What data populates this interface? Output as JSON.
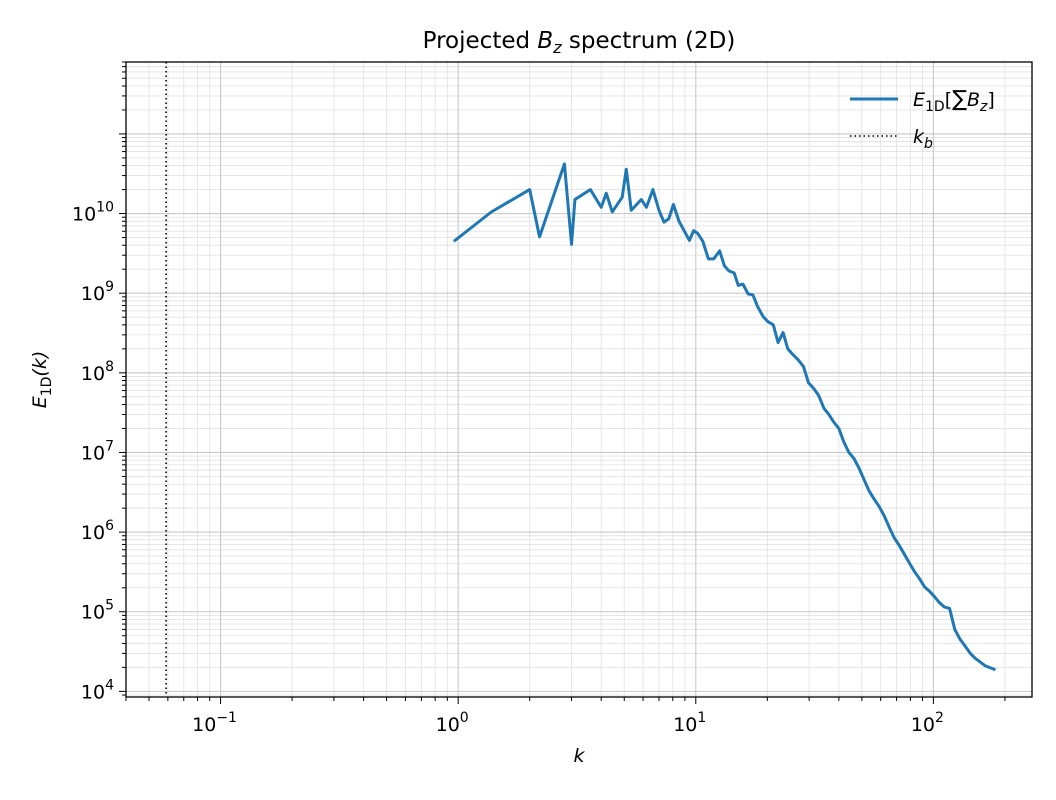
{
  "chart_data": {
    "type": "line",
    "title": "Projected B_z spectrum (2D)",
    "title_parts": {
      "prefix": "Projected ",
      "var": "B",
      "sub": "z",
      "suffix": " spectrum (2D)"
    },
    "xlabel": "k",
    "ylabel": {
      "main": "E",
      "sub": "1D",
      "arg": "(k)"
    },
    "x_scale": "log",
    "y_scale": "log",
    "xlim": [
      0.04,
      260
    ],
    "ylim": [
      8500,
      800000000000.0
    ],
    "x_ticks": [
      {
        "value": 0.1,
        "base": "10",
        "exp": "−1"
      },
      {
        "value": 1,
        "base": "10",
        "exp": "0"
      },
      {
        "value": 10,
        "base": "10",
        "exp": "1"
      },
      {
        "value": 100,
        "base": "10",
        "exp": "2"
      }
    ],
    "y_ticks": [
      {
        "value": 10000,
        "base": "10",
        "exp": "4"
      },
      {
        "value": 100000,
        "base": "10",
        "exp": "5"
      },
      {
        "value": 1000000,
        "base": "10",
        "exp": "6"
      },
      {
        "value": 10000000,
        "base": "10",
        "exp": "7"
      },
      {
        "value": 100000000,
        "base": "10",
        "exp": "8"
      },
      {
        "value": 1000000000,
        "base": "10",
        "exp": "9"
      },
      {
        "value": 10000000000,
        "base": "10",
        "exp": "10"
      }
    ],
    "grid": true,
    "legend_position": "top-right",
    "series": [
      {
        "name": "E_1D[ΣB_z]",
        "legend_parts": {
          "main": "E",
          "sub": "1D",
          "open": "[",
          "sum": "∑",
          "var": "B",
          "var_sub": "z",
          "close": "]"
        },
        "color": "#1f77b4",
        "x": [
          0.97,
          1.38,
          2.0,
          2.2,
          2.8,
          3.0,
          3.1,
          3.6,
          4.0,
          4.2,
          4.45,
          4.9,
          5.1,
          5.35,
          5.9,
          6.2,
          6.6,
          7.0,
          7.35,
          7.7,
          8.05,
          8.5,
          9.4,
          9.8,
          10.2,
          10.7,
          11.3,
          11.9,
          12.6,
          13.2,
          13.8,
          14.5,
          15.1,
          15.8,
          16.6,
          17.4,
          18.2,
          19.2,
          20.1,
          21.2,
          22.2,
          23.3,
          24.4,
          25.6,
          27,
          28.4,
          29.8,
          31.3,
          32.9,
          34.6,
          36.3,
          38.1,
          40,
          42,
          44.1,
          46.3,
          48.6,
          51,
          53.6,
          56.3,
          59.1,
          62.1,
          65.2,
          68.4,
          71.8,
          75.4,
          79.2,
          83.2,
          87.4,
          91.8,
          96.4,
          101,
          106,
          111,
          117,
          123,
          129,
          136,
          143,
          150,
          165,
          180
        ],
        "y": [
          4600000000.0,
          10500000000.0,
          20000000000.0,
          5100000000.0,
          42000000000.0,
          4100000000.0,
          15000000000.0,
          20000000000.0,
          12000000000.0,
          18000000000.0,
          10500000000.0,
          16000000000.0,
          36000000000.0,
          11000000000.0,
          15000000000.0,
          12000000000.0,
          20000000000.0,
          11000000000.0,
          7800000000.0,
          8600000000.0,
          13000000000.0,
          8000000000.0,
          4600000000.0,
          6100000000.0,
          5600000000.0,
          4500000000.0,
          2700000000.0,
          2700000000.0,
          3400000000.0,
          2200000000.0,
          1900000000.0,
          1800000000.0,
          1250000000.0,
          1300000000.0,
          980000000.0,
          950000000.0,
          680000000.0,
          510000000.0,
          440000000.0,
          400000000.0,
          240000000.0,
          320000000.0,
          200000000.0,
          170000000.0,
          145000000.0,
          120000000.0,
          75000000.0,
          64000000.0,
          52000000.0,
          36000000.0,
          30000000.0,
          24000000.0,
          20000000.0,
          13500000.0,
          10000000.0,
          8400000.0,
          6400000.0,
          4600000.0,
          3300000.0,
          2600000.0,
          2100000.0,
          1600000.0,
          1150000.0,
          850000.0,
          680000.0,
          530000.0,
          410000.0,
          320000.0,
          260000.0,
          205000.0,
          180000.0,
          155000.0,
          130000.0,
          115000.0,
          110000.0,
          60000.0,
          46000.0,
          37000.0,
          30000.0,
          26000.0,
          21000.0,
          19000.0
        ]
      }
    ],
    "vline": {
      "name": "k_b",
      "legend_parts": {
        "main": "k",
        "sub": "b"
      },
      "x": 0.059,
      "color": "#000000",
      "style": "dotted"
    }
  }
}
